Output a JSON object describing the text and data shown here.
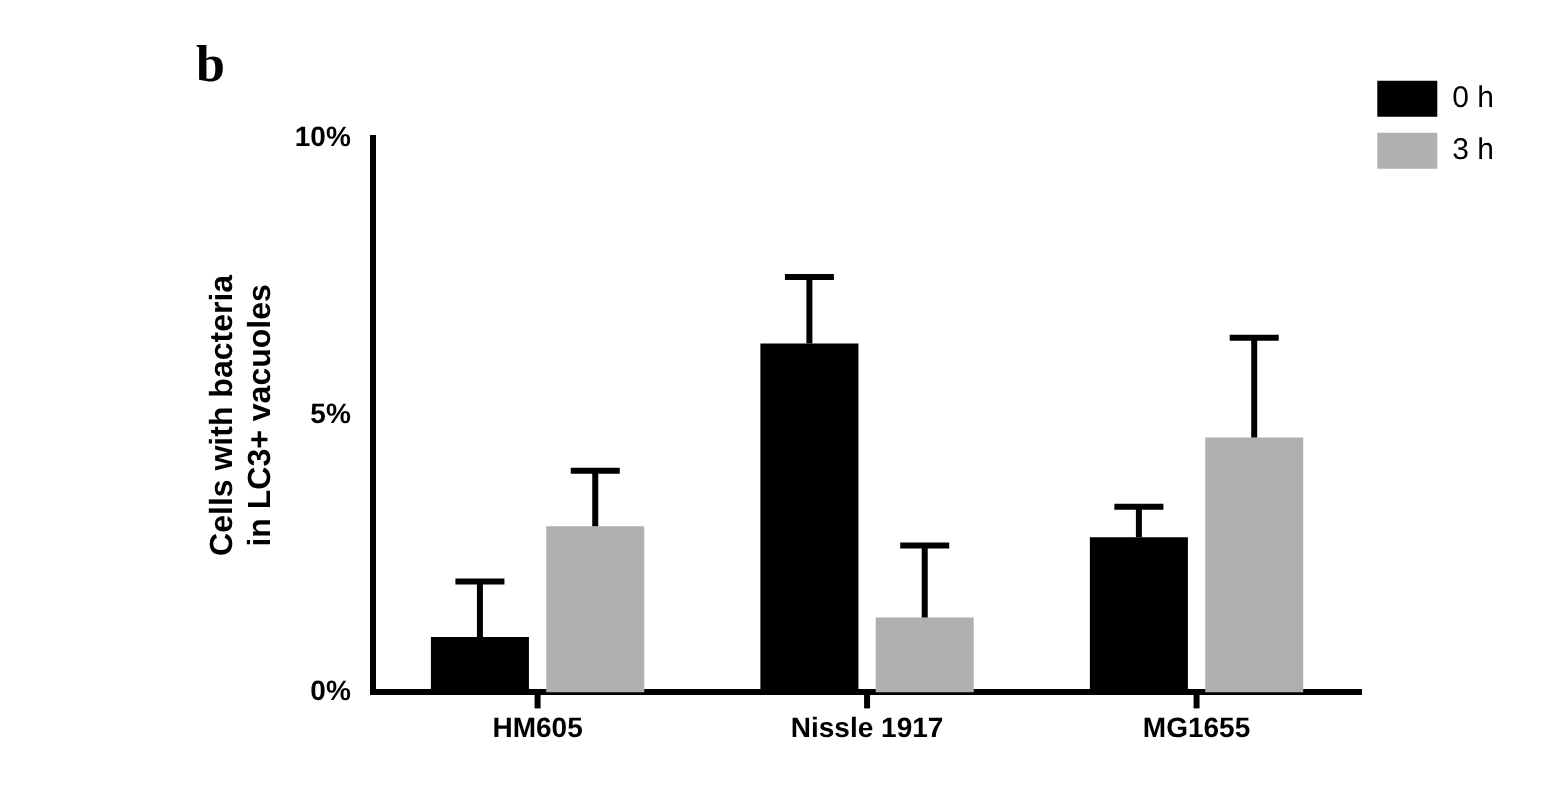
{
  "chart_data": {
    "type": "bar",
    "title": "b",
    "ylabel": "Cells with bacteria\nin LC3+ vacuoles",
    "categories": [
      "HM605",
      "Nissle 1917",
      "MG1655"
    ],
    "series": [
      {
        "name": "0 h",
        "color": "#000000",
        "values": [
          1.0,
          6.3,
          2.8
        ],
        "errors": [
          1.0,
          1.2,
          0.55
        ]
      },
      {
        "name": "3 h",
        "color": "#b0b0b0",
        "values": [
          3.0,
          1.35,
          4.6
        ],
        "errors": [
          1.0,
          1.3,
          1.8
        ]
      }
    ],
    "ylim": [
      0,
      10
    ],
    "yticks": [
      {
        "value": 0,
        "label": "0%"
      },
      {
        "value": 5,
        "label": "5%"
      },
      {
        "value": 10,
        "label": "10%"
      }
    ],
    "grid": false,
    "legend": "top right"
  }
}
